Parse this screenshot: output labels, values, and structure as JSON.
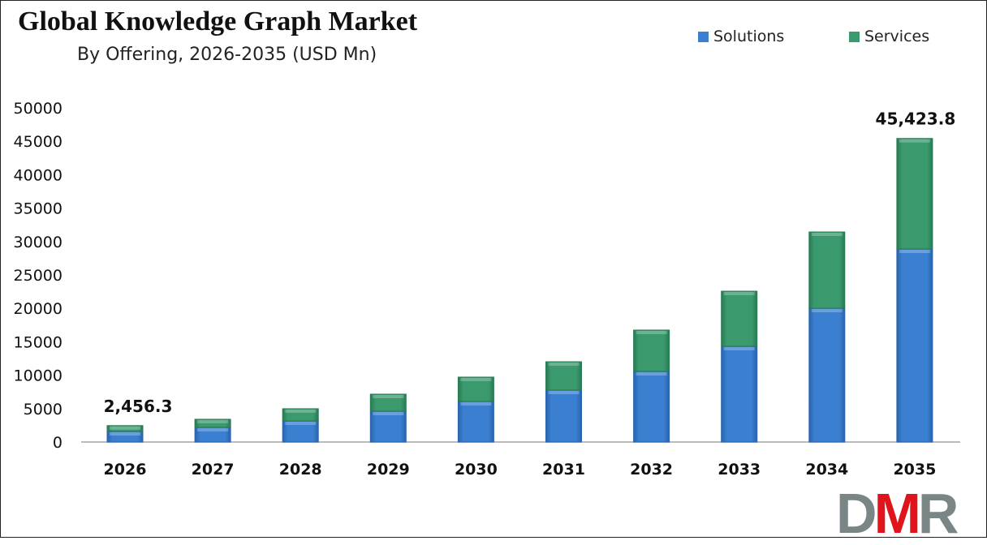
{
  "chart_data": {
    "type": "bar",
    "stacked": true,
    "title": "Global Knowledge Graph Market",
    "subtitle": "By Offering, 2026-2035 (USD Mn)",
    "xlabel": "",
    "ylabel": "",
    "ylim": [
      0,
      50000
    ],
    "yticks": [
      0,
      5000,
      10000,
      15000,
      20000,
      25000,
      30000,
      35000,
      40000,
      45000,
      50000
    ],
    "grid": false,
    "legend_position": "top-right",
    "categories": [
      "2026",
      "2027",
      "2028",
      "2029",
      "2030",
      "2031",
      "2032",
      "2033",
      "2034",
      "2035"
    ],
    "series": [
      {
        "name": "Solutions",
        "color": "#3a7fd0",
        "values": [
          1580,
          2180,
          3150,
          4610,
          6070,
          7770,
          10560,
          14320,
          20020,
          28880
        ]
      },
      {
        "name": "Services",
        "color": "#3a9a6e",
        "values": [
          876.3,
          1220,
          1830,
          2550,
          3640,
          4240,
          6190,
          8250,
          11410,
          16543.8
        ]
      }
    ],
    "data_labels": [
      {
        "category": "2026",
        "text": "2,456.3"
      },
      {
        "category": "2035",
        "text": "45,423.8"
      }
    ]
  },
  "logo": {
    "text": "DMR",
    "colors": [
      "#7a8585",
      "#e0141b",
      "#7a8585"
    ]
  }
}
